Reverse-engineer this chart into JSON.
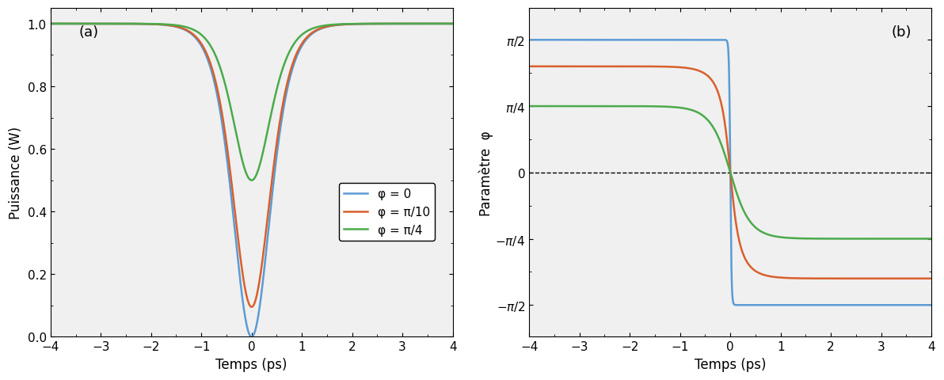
{
  "title_a": "(a)",
  "title_b": "(b)",
  "xlabel": "Temps (ps)",
  "ylabel_a": "Puissance (W)",
  "ylabel_b": "Paramètre  φ",
  "xlim": [
    -4,
    4
  ],
  "ylim_a": [
    0,
    1.05
  ],
  "phi_values": [
    0.0,
    0.3141592653589793,
    0.7853981633974483
  ],
  "colors": [
    "#5B9BD5",
    "#D95F2B",
    "#4AAA4A"
  ],
  "legend_labels": [
    "φ = 0",
    "φ = π/10",
    "φ = π/4"
  ],
  "line_width": 1.8,
  "tau": 0.5,
  "figsize": [
    11.92,
    4.81
  ],
  "dpi": 100,
  "background_color": "#f5f5f5"
}
